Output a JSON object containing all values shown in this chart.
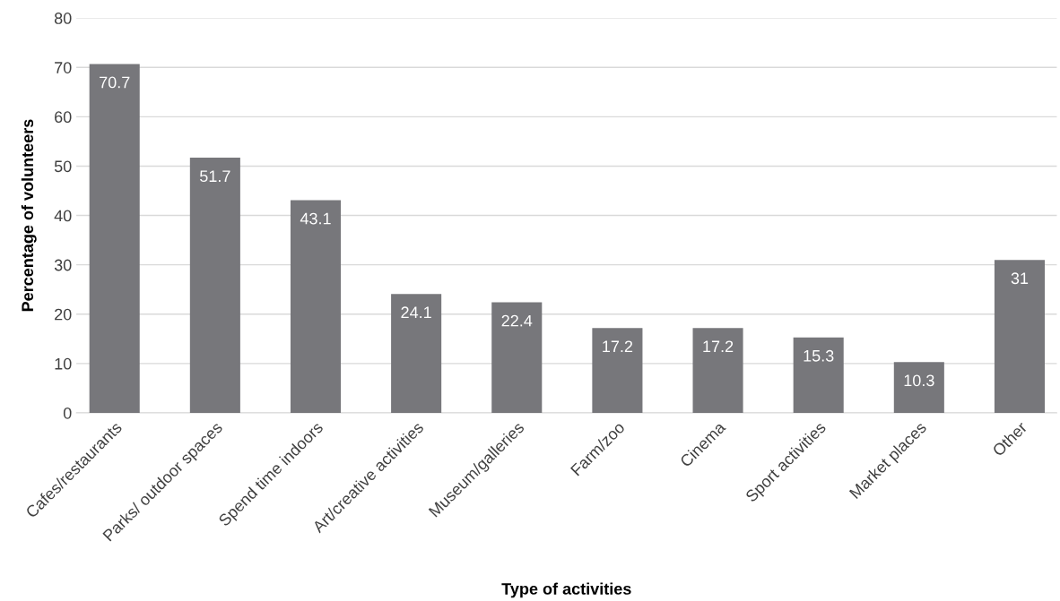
{
  "chart_data": {
    "type": "bar",
    "xlabel": "Type of activities",
    "ylabel": "Percentage of volunteers",
    "categories": [
      "Cafes/restaurants",
      "Parks/ outdoor spaces",
      "Spend time indoors",
      "Art/creative activities",
      "Museum/galleries",
      "Farm/zoo",
      "Cinema",
      "Sport activities",
      "Market places",
      "Other"
    ],
    "values": [
      70.7,
      51.7,
      43.1,
      24.1,
      22.4,
      17.2,
      17.2,
      15.3,
      10.3,
      31
    ],
    "color": "#77777b",
    "ylim": [
      0,
      80
    ],
    "yticks": [
      0,
      10,
      20,
      30,
      40,
      50,
      60,
      70,
      80
    ],
    "grid": "y",
    "data_labels": true,
    "legend": false
  }
}
